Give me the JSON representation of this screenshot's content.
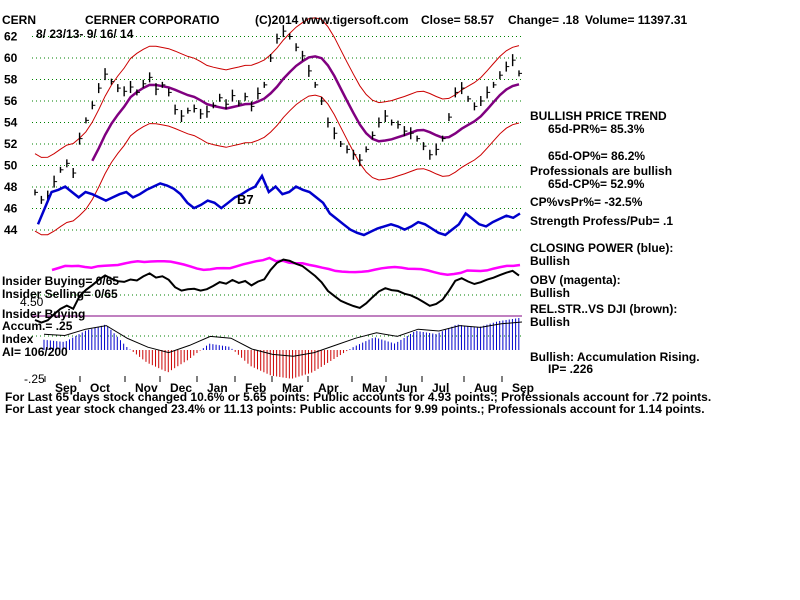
{
  "header": {
    "ticker": "CERN",
    "company": "CERNER CORPORATIO",
    "copyright": "(C)2014 www.tigersoft.com",
    "close": "Close=  58.57",
    "change": "Change= .18",
    "volume": "Volume= 11397.31",
    "date_range": "8/ 23/13-  9/ 16/ 14"
  },
  "right_panel": {
    "trend": "BULLISH PRICE TREND",
    "pr": "65d-PR%= 85.3%",
    "op": "65d-OP%= 86.2%",
    "pros": "Professionals are bullish",
    "cp": "65d-CP%= 52.9%",
    "cpvspr": "CP%vsPr%= -32.5%",
    "strength": "Strength Profess/Pub= .1",
    "closing_power": "CLOSING POWER (blue):",
    "cp_bullish": "Bullish",
    "obv": "OBV (magenta):",
    "obv_bullish": "Bullish",
    "relstr": "REL.STR..VS DJI (brown):",
    "relstr_bullish": "Bullish",
    "accum": "Bullish: Accumulation Rising.",
    "ip": "IP=  .226"
  },
  "left_panel": {
    "insider1": "Insider Buying= 0/65",
    "insider2": "Insider Selling= 0/65",
    "val_450": "4.50",
    "insider3": "Insider Buying",
    "accum_idx": "Accum.= .25",
    "index": "Index",
    "ai": "AI= 106/200",
    "val_25": "-.25"
  },
  "footer": {
    "line1": "For Last 65 days stock changed  10.6% or  5.65 points:  Public accounts for  4.93 points.;  Professionals account for  .72 points.",
    "line2": "For Last year stock changed  23.4% or  11.13 points:  Public accounts for  9.99 points.;  Professionals account for  1.14 points."
  },
  "annotations": {
    "buy_marker": "B7"
  },
  "colors": {
    "price": "#000000",
    "bands": "#cc0000",
    "ma": "#800080",
    "closing_power": "#0000cc",
    "obv": "#ff00ff",
    "relstr": "#000000",
    "accum_pos": "#0000cc",
    "accum_neg": "#cc0000",
    "grid": "#008000"
  },
  "chart_data": {
    "type": "line",
    "title": "CERNER CORPORATIO",
    "yticks": [
      62,
      60,
      58,
      56,
      54,
      52,
      50,
      48,
      46,
      44
    ],
    "ylim": [
      44,
      62
    ],
    "xticks": [
      "Sep",
      "Oct",
      "Nov",
      "Dec",
      "Jan",
      "Feb",
      "Mar",
      "Apr",
      "May",
      "Jun",
      "Jul",
      "Aug",
      "Sep"
    ],
    "grid": true,
    "series": [
      {
        "values": [
          47.5,
          46.8,
          47.2,
          48.5,
          49.6,
          50.2,
          49.3,
          52.5,
          54.2,
          55.6,
          57.2,
          58.5,
          57.8,
          57.2,
          56.9,
          57.3,
          56.8,
          57.6,
          58.2,
          57.1,
          57.5,
          56.8,
          55.2,
          54.6,
          55.1,
          55.3,
          54.8,
          55.0,
          55.6,
          56.3,
          55.7,
          56.5,
          55.8,
          56.4,
          55.5,
          56.7,
          57.5,
          60.0,
          61.8,
          62.5,
          62.0,
          61.0,
          60.2,
          58.8,
          57.5,
          56.0,
          54.0,
          53.0,
          52.0,
          51.5,
          51.0,
          50.5,
          51.5,
          52.8,
          54.0,
          54.6,
          54.0,
          53.8,
          53.2,
          53.0,
          52.5,
          51.8,
          51.0,
          51.5,
          52.5,
          54.5,
          56.8,
          57.2,
          56.2,
          55.5,
          56.0,
          56.8,
          57.5,
          58.4,
          59.2,
          59.8,
          58.57
        ]
      },
      {
        "values": [
          45.0,
          46.5,
          48.0,
          48.2,
          48.5,
          48.0,
          47.5,
          48.0,
          47.8,
          47.5,
          47.2,
          47.5,
          47.8,
          48.0,
          47.5,
          47.8,
          48.2,
          48.5,
          48.8,
          48.6,
          48.3,
          47.8,
          47.0,
          46.5,
          46.8,
          47.2,
          47.0,
          46.5,
          47.0,
          47.5,
          47.8,
          48.2,
          48.5,
          49.5,
          48.0,
          48.5,
          47.8,
          48.0,
          48.5,
          48.2,
          48.0,
          47.5,
          47.0,
          46.0,
          45.5,
          45.0,
          44.5,
          44.2,
          44.0,
          44.3,
          44.6,
          44.8,
          45.0,
          44.8,
          44.5,
          44.8,
          45.2,
          45.0,
          44.6,
          44.2,
          44.0,
          44.5,
          45.0,
          46.0,
          45.5,
          45.0,
          44.8,
          45.2,
          45.5,
          45.8,
          45.6,
          46.0
        ]
      },
      {
        "values": [
          0.32,
          0.25,
          0.6,
          0.8,
          0.1,
          -0.4,
          -0.7,
          -0.3,
          0.2,
          0.1,
          -0.5,
          -0.8,
          -0.9,
          -0.7,
          -0.3,
          0.1,
          0.4,
          0.2,
          0.6,
          0.5,
          0.8,
          0.7,
          0.9,
          1.0
        ]
      }
    ]
  }
}
